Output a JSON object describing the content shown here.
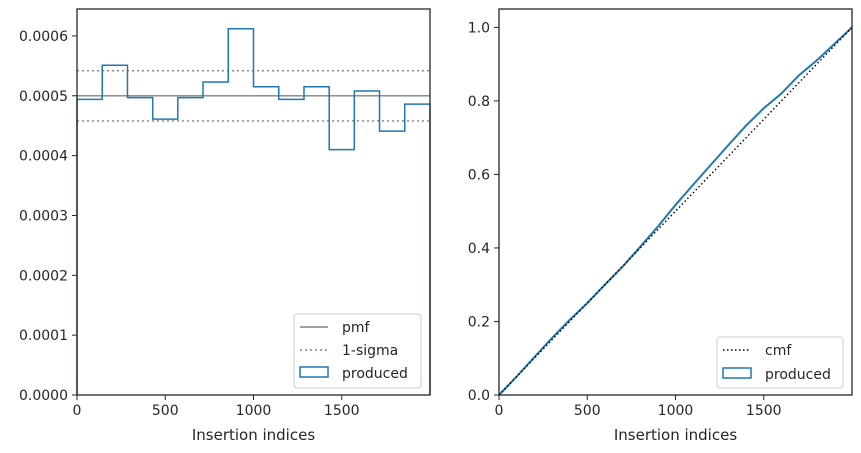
{
  "colors": {
    "produced": "#1f77b4",
    "pmf": "#808080",
    "sigma": "#808080",
    "cmf": "#000000",
    "axis": "#262626"
  },
  "chart_data": [
    {
      "type": "step-histogram",
      "xlabel": "Insertion indices",
      "ylabel": "",
      "xlim": [
        0,
        2000
      ],
      "ylim": [
        0,
        0.000645
      ],
      "xticks": [
        0,
        500,
        1000,
        1500
      ],
      "xtick_labels": [
        "0",
        "500",
        "1000",
        "1500"
      ],
      "yticks": [
        0,
        0.0001,
        0.0002,
        0.0003,
        0.0004,
        0.0005,
        0.0006
      ],
      "ytick_labels": [
        "0.0000",
        "0.0001",
        "0.0002",
        "0.0003",
        "0.0004",
        "0.0005",
        "0.0006"
      ],
      "bin_edges": [
        0,
        143,
        286,
        429,
        571,
        714,
        857,
        1000,
        1143,
        1286,
        1429,
        1571,
        1714,
        1857,
        2000
      ],
      "produced": [
        0.000494,
        0.000551,
        0.000497,
        0.000461,
        0.000497,
        0.000523,
        0.000612,
        0.000515,
        0.000494,
        0.000515,
        0.00041,
        0.000508,
        0.000441,
        0.000486
      ],
      "pmf": 0.0005,
      "sigma_upper": 0.000542,
      "sigma_lower": 0.000458,
      "legend_position": "lower-right",
      "legend": [
        "pmf",
        "1-sigma",
        "produced"
      ]
    },
    {
      "type": "line",
      "xlabel": "Insertion indices",
      "ylabel": "",
      "xlim": [
        0,
        2000
      ],
      "ylim": [
        0,
        1.05
      ],
      "xticks": [
        0,
        500,
        1000,
        1500
      ],
      "xtick_labels": [
        "0",
        "500",
        "1000",
        "1500"
      ],
      "yticks": [
        0,
        0.2,
        0.4,
        0.6,
        0.8,
        1.0
      ],
      "ytick_labels": [
        "0.0",
        "0.2",
        "0.4",
        "0.6",
        "0.8",
        "1.0"
      ],
      "cmf": {
        "x": [
          0,
          2000
        ],
        "y": [
          0,
          1.0
        ]
      },
      "produced": {
        "x": [
          0,
          100,
          200,
          300,
          400,
          500,
          600,
          700,
          800,
          900,
          1000,
          1100,
          1200,
          1300,
          1400,
          1500,
          1600,
          1700,
          1800,
          1900,
          2000
        ],
        "y": [
          0,
          0.05,
          0.103,
          0.155,
          0.204,
          0.25,
          0.3,
          0.349,
          0.403,
          0.458,
          0.517,
          0.572,
          0.626,
          0.68,
          0.733,
          0.78,
          0.82,
          0.87,
          0.91,
          0.955,
          1.0
        ]
      },
      "legend_position": "lower-right",
      "legend": [
        "cmf",
        "produced"
      ]
    }
  ]
}
